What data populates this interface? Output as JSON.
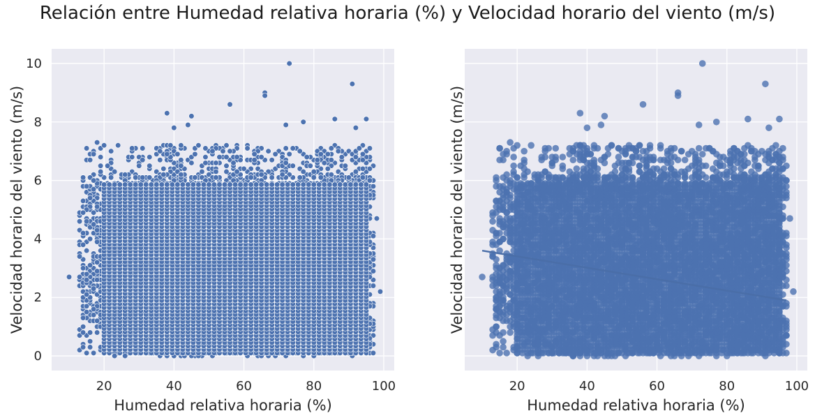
{
  "suptitle": "Relación entre Humedad relativa horaria (%) y Velocidad horario del viento (m/s)",
  "chart_data": [
    {
      "type": "scatter",
      "xlabel": "Humedad relativa horaria (%)",
      "ylabel": "Velocidad horario del viento (m/s)",
      "xlim": [
        5,
        103
      ],
      "ylim": [
        -0.5,
        10.5
      ],
      "xticks": [
        "20",
        "40",
        "60",
        "80",
        "100"
      ],
      "yticks": [
        "0",
        "2",
        "4",
        "6",
        "8",
        "10"
      ],
      "grid": true,
      "color": "#4c72b0",
      "background": "#eaeaf2",
      "main_cloud": {
        "x_range": [
          13,
          97
        ],
        "y_range": [
          0,
          6
        ]
      },
      "outliers": [
        {
          "x": 73,
          "y": 10.0
        },
        {
          "x": 91,
          "y": 9.3
        },
        {
          "x": 66,
          "y": 9.0
        },
        {
          "x": 66,
          "y": 8.9
        },
        {
          "x": 56,
          "y": 8.6
        },
        {
          "x": 38,
          "y": 8.3
        },
        {
          "x": 45,
          "y": 8.2
        },
        {
          "x": 86,
          "y": 8.1
        },
        {
          "x": 95,
          "y": 8.1
        },
        {
          "x": 44,
          "y": 7.9
        },
        {
          "x": 40,
          "y": 7.8
        },
        {
          "x": 72,
          "y": 7.9
        },
        {
          "x": 77,
          "y": 8.0
        },
        {
          "x": 92,
          "y": 7.8
        },
        {
          "x": 18,
          "y": 7.3
        },
        {
          "x": 10,
          "y": 2.7
        },
        {
          "x": 99,
          "y": 2.2
        },
        {
          "x": 98,
          "y": 4.7
        },
        {
          "x": 23,
          "y": 0.0
        },
        {
          "x": 26,
          "y": 0.0
        }
      ]
    },
    {
      "type": "scatter",
      "xlabel": "Humedad relativa horaria (%)",
      "ylabel": "Velocidad horario del viento (m/s)",
      "xlim": [
        5,
        103
      ],
      "ylim": [
        -0.5,
        10.5
      ],
      "xticks": [
        "20",
        "40",
        "60",
        "80",
        "100"
      ],
      "grid": true,
      "color": "#4c72b0",
      "background": "#eaeaf2",
      "regression_line": {
        "x": [
          10,
          97
        ],
        "y": [
          3.6,
          1.9
        ]
      },
      "main_cloud": {
        "x_range": [
          13,
          97
        ],
        "y_range": [
          0,
          6
        ]
      },
      "outliers": [
        {
          "x": 73,
          "y": 10.0
        },
        {
          "x": 91,
          "y": 9.3
        },
        {
          "x": 66,
          "y": 9.0
        },
        {
          "x": 66,
          "y": 8.9
        },
        {
          "x": 56,
          "y": 8.6
        },
        {
          "x": 38,
          "y": 8.3
        },
        {
          "x": 45,
          "y": 8.2
        },
        {
          "x": 86,
          "y": 8.1
        },
        {
          "x": 95,
          "y": 8.1
        },
        {
          "x": 44,
          "y": 7.9
        },
        {
          "x": 40,
          "y": 7.8
        },
        {
          "x": 72,
          "y": 7.9
        },
        {
          "x": 77,
          "y": 8.0
        },
        {
          "x": 92,
          "y": 7.8
        },
        {
          "x": 18,
          "y": 7.3
        },
        {
          "x": 10,
          "y": 2.7
        },
        {
          "x": 99,
          "y": 2.2
        },
        {
          "x": 98,
          "y": 4.7
        },
        {
          "x": 23,
          "y": 0.0
        },
        {
          "x": 26,
          "y": 0.0
        }
      ]
    }
  ]
}
